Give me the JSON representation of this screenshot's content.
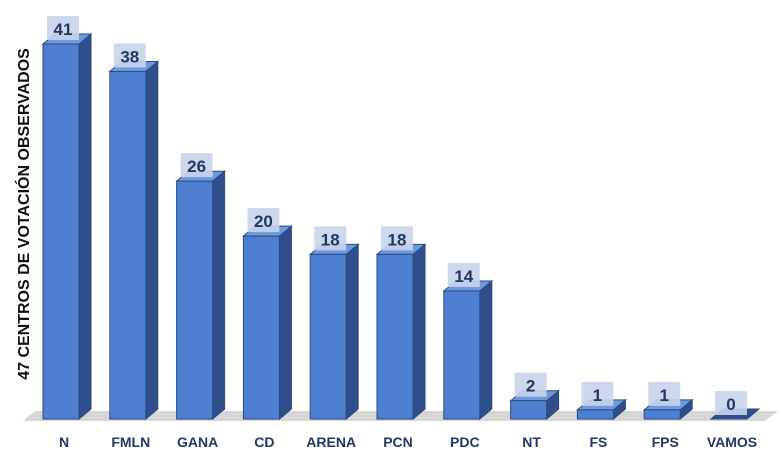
{
  "chart_data": {
    "type": "bar",
    "title": "",
    "xlabel": "",
    "ylabel": "47 CENTROS DE VOTACIÓN OBSERVADOS",
    "categories": [
      "N",
      "FMLN",
      "GANA",
      "CD",
      "ARENA",
      "PCN",
      "PDC",
      "NT",
      "FS",
      "FPS",
      "VAMOS"
    ],
    "values": [
      41,
      38,
      26,
      20,
      18,
      18,
      14,
      2,
      1,
      1,
      0
    ],
    "ylim": [
      0,
      41
    ],
    "grid": false,
    "legend": "none",
    "colors": {
      "bar_front": "#4f7fd0",
      "bar_side": "#2f4f8c",
      "bar_top": "#6f99de",
      "bar_edge": "#2a4a80",
      "label_box": "#c9d4ea",
      "label_text": "#1f3864",
      "floor": "#d6d6d6"
    }
  }
}
